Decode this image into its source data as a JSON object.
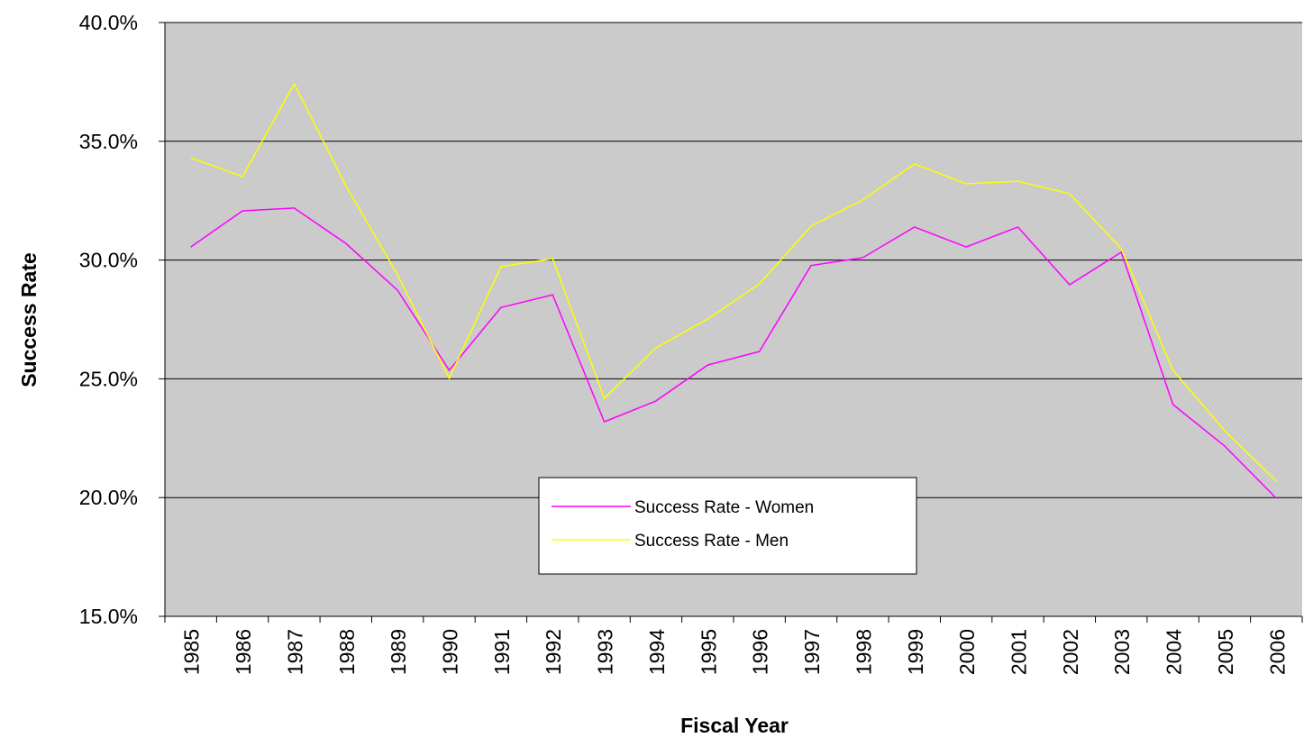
{
  "chart_data": {
    "type": "line",
    "x_label": "Fiscal Year",
    "y_label": "Success Rate",
    "categories": [
      "1985",
      "1986",
      "1987",
      "1988",
      "1989",
      "1990",
      "1991",
      "1992",
      "1993",
      "1994",
      "1995",
      "1996",
      "1997",
      "1998",
      "1999",
      "2000",
      "2001",
      "2002",
      "2003",
      "2004",
      "2005",
      "2006"
    ],
    "series": [
      {
        "name": "Success Rate - Women",
        "color": "#ff00ff",
        "values": [
          30.55,
          32.07,
          32.19,
          30.7,
          28.73,
          25.36,
          28.0,
          28.54,
          23.19,
          24.07,
          25.58,
          26.15,
          29.77,
          30.1,
          31.39,
          30.55,
          31.39,
          28.96,
          30.33,
          23.92,
          22.17,
          19.97
        ]
      },
      {
        "name": "Success Rate - Men",
        "color": "#ffff00",
        "values": [
          34.31,
          33.51,
          37.42,
          33.13,
          29.38,
          25.02,
          29.72,
          30.06,
          24.18,
          26.3,
          27.52,
          29.0,
          31.43,
          32.53,
          34.05,
          33.21,
          33.32,
          32.79,
          30.48,
          25.36,
          22.82,
          20.69
        ]
      }
    ],
    "ylim": [
      15,
      40
    ],
    "yticks": [
      {
        "value": 15,
        "label": "15.0%"
      },
      {
        "value": 20,
        "label": "20.0%"
      },
      {
        "value": 25,
        "label": "25.0%"
      },
      {
        "value": 30,
        "label": "30.0%"
      },
      {
        "value": 35,
        "label": "35.0%"
      },
      {
        "value": 40,
        "label": "40.0%"
      }
    ],
    "grid": true,
    "plot_background": "#cbcbcb"
  }
}
